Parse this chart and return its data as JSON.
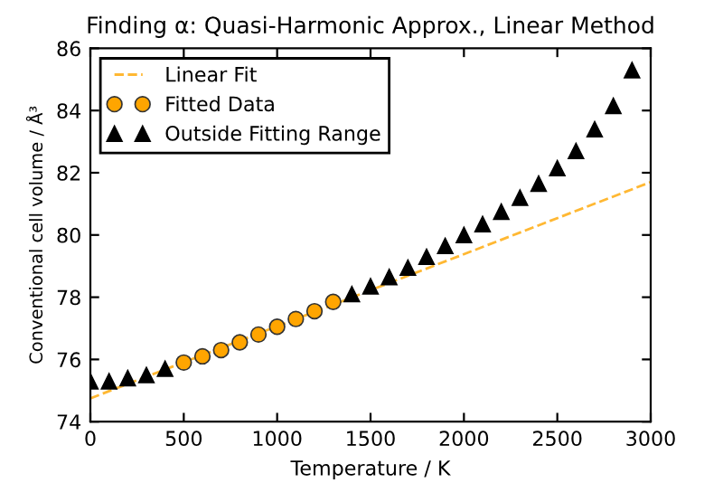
{
  "chart_data": {
    "type": "scatter",
    "title": "Finding α: Quasi-Harmonic Approx., Linear Method",
    "xlabel": "Temperature / K",
    "ylabel": "Conventional cell volume / Å³",
    "xlim": [
      0,
      3000
    ],
    "xticks": [
      0,
      500,
      1000,
      1500,
      2000,
      2500,
      3000
    ],
    "ylim": [
      74,
      86
    ],
    "yticks": [
      74,
      76,
      78,
      80,
      82,
      84,
      86
    ],
    "grid": false,
    "legend": "top left",
    "series": [
      {
        "name": "Linear Fit",
        "type": "line",
        "line_style": "dashed",
        "marker": "none",
        "color": "#ffb833",
        "x": [
          0,
          3000
        ],
        "values": [
          74.75,
          81.7
        ]
      },
      {
        "name": "Fitted Data",
        "marker": "circle",
        "color": "#ffa500",
        "x": [
          500,
          600,
          700,
          800,
          900,
          1000,
          1100,
          1200,
          1300
        ],
        "values": [
          75.9,
          76.1,
          76.3,
          76.55,
          76.8,
          77.05,
          77.3,
          77.55,
          77.85
        ]
      },
      {
        "name": "Outside Fitting Range",
        "marker": "triangle",
        "color": "#000000",
        "x": [
          0,
          100,
          200,
          300,
          400,
          1400,
          1500,
          1600,
          1700,
          1800,
          1900,
          2000,
          2100,
          2200,
          2300,
          2400,
          2500,
          2600,
          2700,
          2800,
          2900
        ],
        "values": [
          75.3,
          75.3,
          75.4,
          75.5,
          75.7,
          78.1,
          78.35,
          78.65,
          78.95,
          79.3,
          79.65,
          80.0,
          80.35,
          80.75,
          81.2,
          81.65,
          82.15,
          82.7,
          83.4,
          84.15,
          85.3
        ]
      }
    ]
  }
}
